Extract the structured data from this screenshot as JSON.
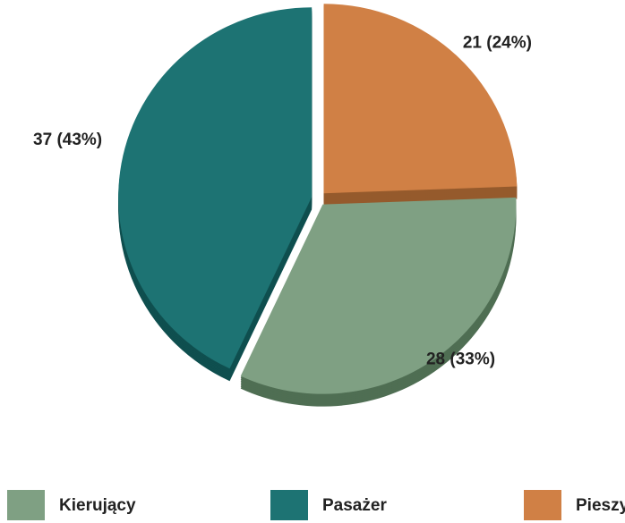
{
  "chart_data": {
    "type": "pie",
    "categories": [
      "Kierujący",
      "Pasażer",
      "Pieszy"
    ],
    "values": [
      28,
      37,
      21
    ],
    "value_labels": [
      "28 (33%)",
      "37 (43%)",
      "21 (24%)"
    ],
    "colors": [
      "#7fa083",
      "#1d7373",
      "#d08045"
    ],
    "shade_colors": [
      "#4f6e53",
      "#0f4f4f",
      "#955a2c"
    ],
    "legend": "bottom"
  }
}
